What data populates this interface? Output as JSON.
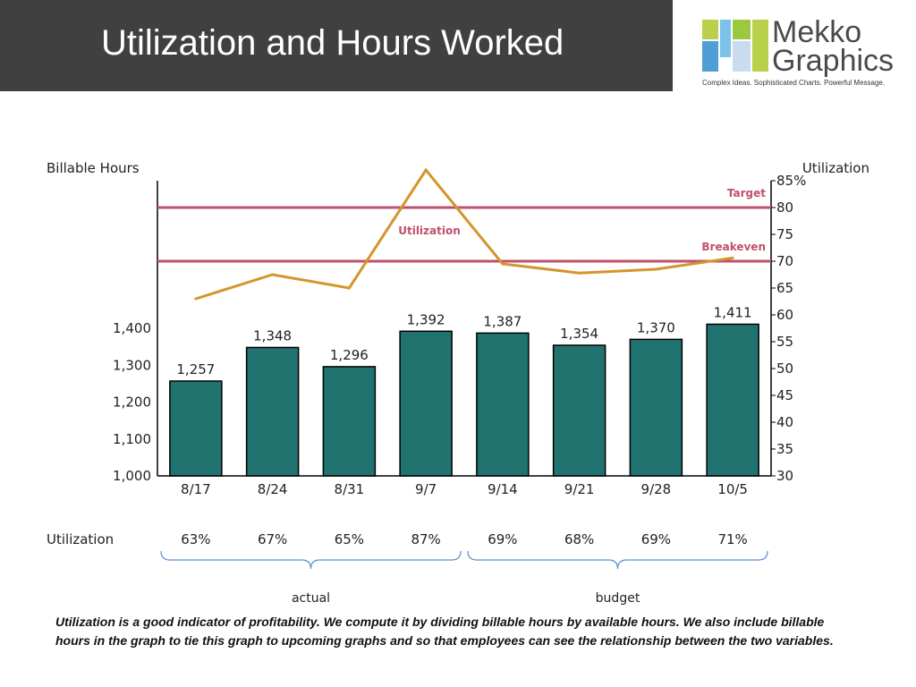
{
  "slide": {
    "title": "Utilization and Hours Worked",
    "footnote": "Utilization is a good indicator of profitability.  We compute it by dividing billable hours by available hours.  We also include billable hours in the graph to tie this graph to upcoming graphs and so that employees can see the relationship between the two variables."
  },
  "logo": {
    "name_line1": "Mekko",
    "name_line2": "Graphics",
    "tagline": "Complex Ideas. Sophisticated Charts. Powerful Message.",
    "colors": [
      "#b8d04a",
      "#4d9fd6",
      "#7cc1e8",
      "#9ac940",
      "#c9dcef"
    ]
  },
  "utilization_row": {
    "label": "Utilization",
    "values": [
      "63%",
      "67%",
      "65%",
      "87%",
      "69%",
      "68%",
      "69%",
      "71%"
    ]
  },
  "chart_data": {
    "type": "bar",
    "categories": [
      "8/17",
      "8/24",
      "8/31",
      "9/7",
      "9/14",
      "9/21",
      "9/28",
      "10/5"
    ],
    "series": [
      {
        "name": "",
        "axis": "left",
        "type": "bar",
        "values": [
          1257,
          1348,
          1296,
          1392,
          1387,
          1354,
          1370,
          1411
        ],
        "labels": [
          "1,257",
          "1,348",
          "1,296",
          "1,392",
          "1,387",
          "1,354",
          "1,370",
          "1,411"
        ],
        "color": "#217370"
      },
      {
        "name": "Utilization",
        "axis": "right",
        "type": "line",
        "values": [
          63,
          67.5,
          65,
          87,
          69.5,
          67.8,
          68.5,
          70.6
        ],
        "color": "#d4952c"
      }
    ],
    "y_left": {
      "label": "Billable Hours",
      "range": [
        1000,
        1400
      ],
      "ticks": [
        1000,
        1100,
        1200,
        1300,
        1400
      ],
      "tick_labels": [
        "1,000",
        "1,100",
        "1,200",
        "1,300",
        "1,400"
      ]
    },
    "y_right": {
      "label": "Utilization",
      "range": [
        30,
        85
      ],
      "ticks": [
        30,
        35,
        40,
        45,
        50,
        55,
        60,
        65,
        70,
        75,
        80,
        85
      ],
      "tick_labels": [
        "30",
        "35",
        "40",
        "45",
        "50",
        "55",
        "60",
        "65",
        "70",
        "75",
        "80",
        "85%"
      ]
    },
    "reference_lines": [
      {
        "label": "Target",
        "value": 80,
        "color": "#c0506b"
      },
      {
        "label": "Breakeven",
        "value": 70,
        "color": "#c0506b"
      }
    ],
    "groups": [
      {
        "label": "actual",
        "from": "8/17",
        "to": "9/7"
      },
      {
        "label": "budget",
        "from": "9/14",
        "to": "10/5"
      }
    ],
    "grid": false,
    "legend": "none"
  }
}
